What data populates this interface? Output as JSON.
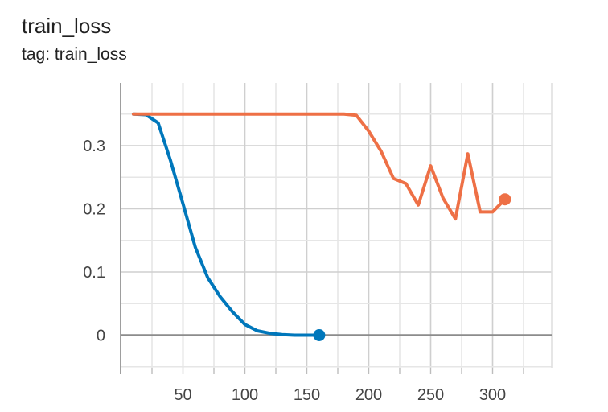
{
  "header": {
    "title": "train_loss",
    "subtitle": "tag: train_loss"
  },
  "chart_data": {
    "type": "line",
    "title": "train_loss",
    "subtitle": "tag: train_loss",
    "xlabel": "",
    "ylabel": "",
    "xlim": [
      -8,
      342
    ],
    "ylim": [
      -0.055,
      0.405
    ],
    "grid": true,
    "x_ticks": [
      50,
      100,
      150,
      200,
      250,
      300
    ],
    "y_ticks": [
      0,
      0.1,
      0.2,
      0.3
    ],
    "x_tick_labels": [
      "50",
      "100",
      "150",
      "200",
      "250",
      "300"
    ],
    "y_tick_labels": [
      "0",
      "0.1",
      "0.2",
      "0.3"
    ],
    "series": [
      {
        "color": "#0077bb",
        "x": [
          10,
          20,
          30,
          40,
          50,
          60,
          70,
          80,
          90,
          100,
          110,
          120,
          130,
          140,
          150,
          160
        ],
        "y": [
          0.35,
          0.349,
          0.336,
          0.276,
          0.208,
          0.139,
          0.091,
          0.061,
          0.037,
          0.017,
          0.007,
          0.003,
          0.001,
          0.0,
          0.0,
          0.0
        ]
      },
      {
        "color": "#ee7046",
        "x": [
          10,
          20,
          30,
          40,
          50,
          60,
          70,
          80,
          90,
          100,
          110,
          120,
          130,
          140,
          150,
          160,
          170,
          180,
          190,
          200,
          210,
          220,
          230,
          240,
          250,
          260,
          270,
          280,
          290,
          300,
          310
        ],
        "y": [
          0.35,
          0.35,
          0.35,
          0.35,
          0.35,
          0.35,
          0.35,
          0.35,
          0.35,
          0.35,
          0.35,
          0.35,
          0.35,
          0.35,
          0.35,
          0.35,
          0.35,
          0.35,
          0.348,
          0.323,
          0.291,
          0.248,
          0.24,
          0.206,
          0.268,
          0.217,
          0.184,
          0.287,
          0.195,
          0.195,
          0.215
        ]
      }
    ]
  }
}
